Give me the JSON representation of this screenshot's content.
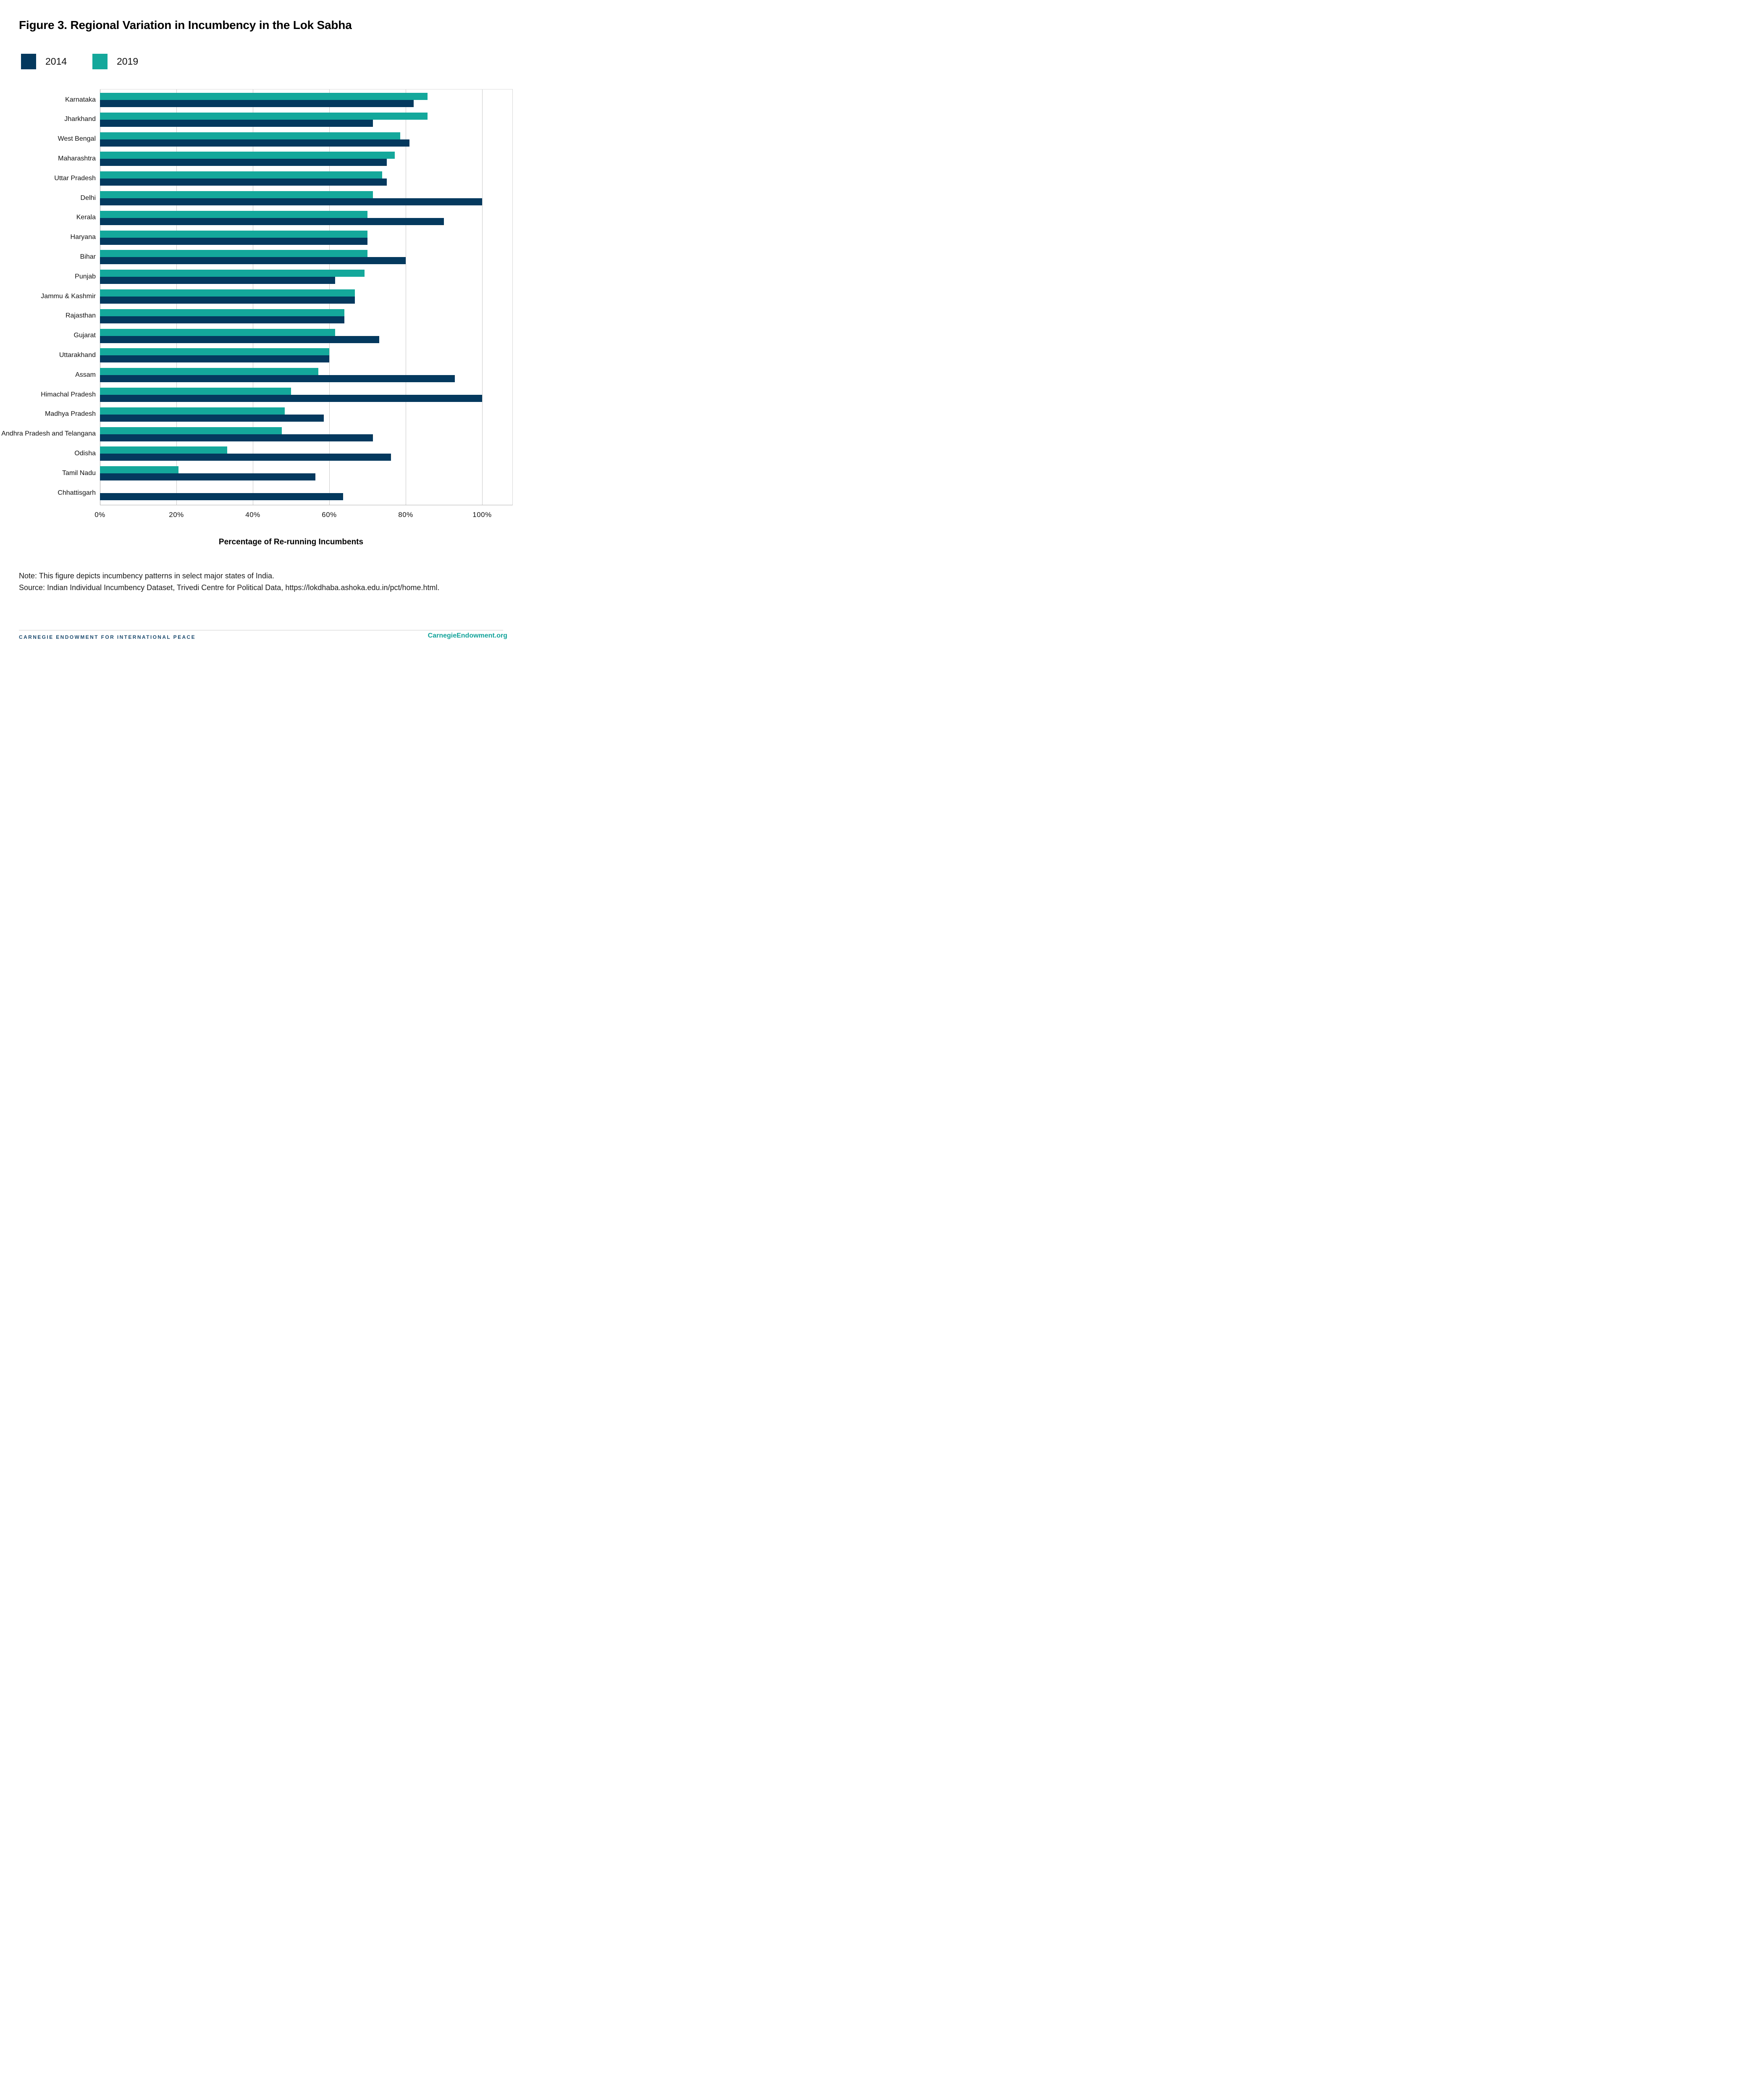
{
  "title": "Figure 3. Regional Variation in Incumbency in the Lok Sabha",
  "legend": [
    {
      "label": "2014",
      "color": "#04395E"
    },
    {
      "label": "2019",
      "color": "#14A89B"
    }
  ],
  "chart_data": {
    "type": "bar",
    "orientation": "horizontal",
    "title": "Figure 3. Regional Variation in Incumbency in the Lok Sabha",
    "xlabel": "Percentage of Re-running Incumbents",
    "ylabel": "",
    "xlim": [
      0,
      100
    ],
    "x_ticks": [
      "0%",
      "20%",
      "40%",
      "60%",
      "80%",
      "100%"
    ],
    "x_tick_values": [
      0,
      20,
      40,
      60,
      80,
      100
    ],
    "grid": true,
    "legend_position": "top-left",
    "categories": [
      "Karnataka",
      "Jharkhand",
      "West Bengal",
      "Maharashtra",
      "Uttar Pradesh",
      "Delhi",
      "Kerala",
      "Haryana",
      "Bihar",
      "Punjab",
      "Jammu & Kashmir",
      "Rajasthan",
      "Gujarat",
      "Uttarakhand",
      "Assam",
      "Himachal Pradesh",
      "Madhya Pradesh",
      "Andhra Pradesh and Telangana",
      "Odisha",
      "Tamil Nadu",
      "Chhattisgarh"
    ],
    "series": [
      {
        "name": "2014",
        "color": "#04395E",
        "values": [
          82.1,
          71.4,
          81.0,
          75.0,
          75.0,
          100.0,
          90.0,
          70.0,
          80.0,
          61.5,
          66.7,
          64.0,
          73.1,
          60.0,
          92.9,
          100.0,
          58.6,
          71.4,
          76.2,
          56.4,
          63.6
        ]
      },
      {
        "name": "2019",
        "color": "#14A89B",
        "values": [
          85.7,
          85.7,
          78.6,
          77.1,
          73.8,
          71.4,
          70.0,
          70.0,
          70.0,
          69.2,
          66.7,
          64.0,
          61.5,
          60.0,
          57.1,
          50.0,
          48.3,
          47.6,
          33.3,
          20.5,
          0.0
        ]
      }
    ],
    "bar_order_note": "Within each category pair, the 2019 teal bar is drawn above the 2014 navy bar"
  },
  "note": "Note: This figure depicts incumbency patterns in select major states of India.",
  "source": "Source: Indian Individual Incumbency Dataset, Trivedi Centre for Political Data, https://lokdhaba.ashoka.edu.in/pct/home.html.",
  "footer": {
    "left": "CARNEGIE ENDOWMENT FOR INTERNATIONAL PEACE",
    "right": "CarnegieEndowment.org"
  }
}
